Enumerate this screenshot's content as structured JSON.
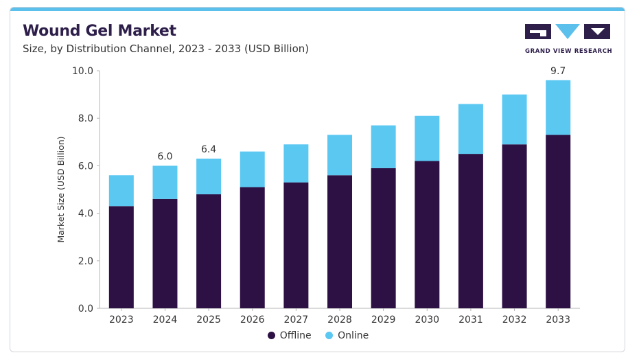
{
  "header": {
    "title": "Wound Gel Market",
    "subtitle": "Size, by Distribution Channel, 2023 - 2033 (USD Billion)"
  },
  "logo": {
    "text": "GRAND VIEW RESEARCH",
    "color_dark": "#2d1e4a",
    "color_light": "#5bc0eb"
  },
  "chart_data": {
    "type": "bar",
    "stacked": true,
    "categories": [
      "2023",
      "2024",
      "2025",
      "2026",
      "2027",
      "2028",
      "2029",
      "2030",
      "2031",
      "2032",
      "2033"
    ],
    "series": [
      {
        "name": "Offline",
        "color": "#2d1044",
        "values": [
          4.3,
          4.6,
          4.8,
          5.1,
          5.3,
          5.6,
          5.9,
          6.2,
          6.5,
          6.9,
          7.3
        ]
      },
      {
        "name": "Online",
        "color": "#5bc8f2",
        "values": [
          1.3,
          1.4,
          1.5,
          1.5,
          1.6,
          1.7,
          1.8,
          1.9,
          2.1,
          2.1,
          2.3
        ]
      }
    ],
    "data_labels": [
      {
        "category": "2024",
        "text": "6.0"
      },
      {
        "category": "2025",
        "text": "6.4"
      },
      {
        "category": "2033",
        "text": "9.7"
      }
    ],
    "ylabel": "Market Size (USD Billion)",
    "xlabel": "",
    "ylim": [
      0,
      10
    ],
    "yticks": [
      "0.0",
      "2.0",
      "4.0",
      "6.0",
      "8.0",
      "10.0"
    ],
    "legend_position": "bottom-center",
    "grid": false
  }
}
